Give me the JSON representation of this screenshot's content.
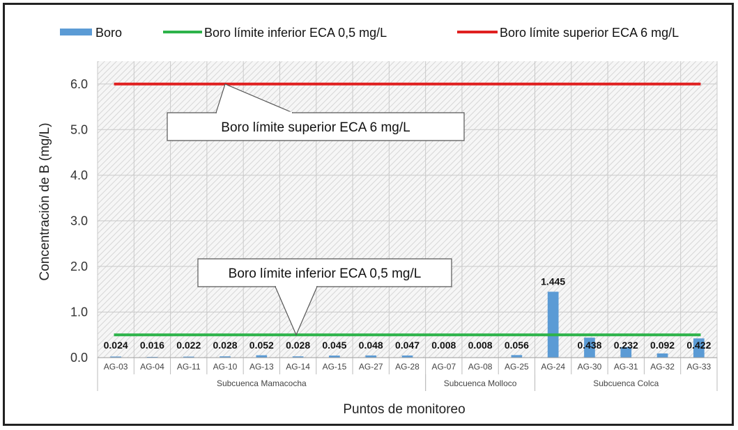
{
  "chart_data": {
    "type": "bar",
    "title": "",
    "xlabel": "Puntos de monitoreo",
    "ylabel": "Concentración de B (mg/L)",
    "ylim": [
      0,
      6.5
    ],
    "yticks": [
      "0.0",
      "1.0",
      "2.0",
      "3.0",
      "4.0",
      "5.0",
      "6.0"
    ],
    "grid": true,
    "legend_position": "top",
    "categories": [
      "AG-03",
      "AG-04",
      "AG-11",
      "AG-10",
      "AG-13",
      "AG-14",
      "AG-15",
      "AG-27",
      "AG-28",
      "AG-07",
      "AG-08",
      "AG-25",
      "AG-24",
      "AG-30",
      "AG-31",
      "AG-32",
      "AG-33"
    ],
    "groups": [
      {
        "label": "Subcuenca Mamacocha",
        "start": 0,
        "end": 8
      },
      {
        "label": "Subcuenca Molloco",
        "start": 9,
        "end": 11
      },
      {
        "label": "Subcuenca Colca",
        "start": 12,
        "end": 16
      }
    ],
    "series": [
      {
        "name": "Boro",
        "color": "#5b9bd5",
        "values": [
          0.024,
          0.016,
          0.022,
          0.028,
          0.052,
          0.028,
          0.045,
          0.048,
          0.047,
          0.008,
          0.008,
          0.056,
          1.445,
          0.438,
          0.232,
          0.092,
          0.422
        ],
        "labels": [
          "0.024",
          "0.016",
          "0.022",
          "0.028",
          "0.052",
          "0.028",
          "0.045",
          "0.048",
          "0.047",
          "0.008",
          "0.008",
          "0.056",
          "1.445",
          "0.438",
          "0.232",
          "0.092",
          "0.422"
        ]
      }
    ],
    "reference_lines": [
      {
        "name": "Boro límite inferior ECA 0,5 mg/L",
        "value": 0.5,
        "color": "#2db34a"
      },
      {
        "name": "Boro límite superior ECA 6 mg/L",
        "value": 6,
        "color": "#e02020"
      }
    ],
    "annotations": [
      {
        "text": "Boro límite superior ECA 6 mg/L",
        "target": 6
      },
      {
        "text": "Boro límite inferior ECA 0,5 mg/L",
        "target": 0.5
      }
    ]
  }
}
